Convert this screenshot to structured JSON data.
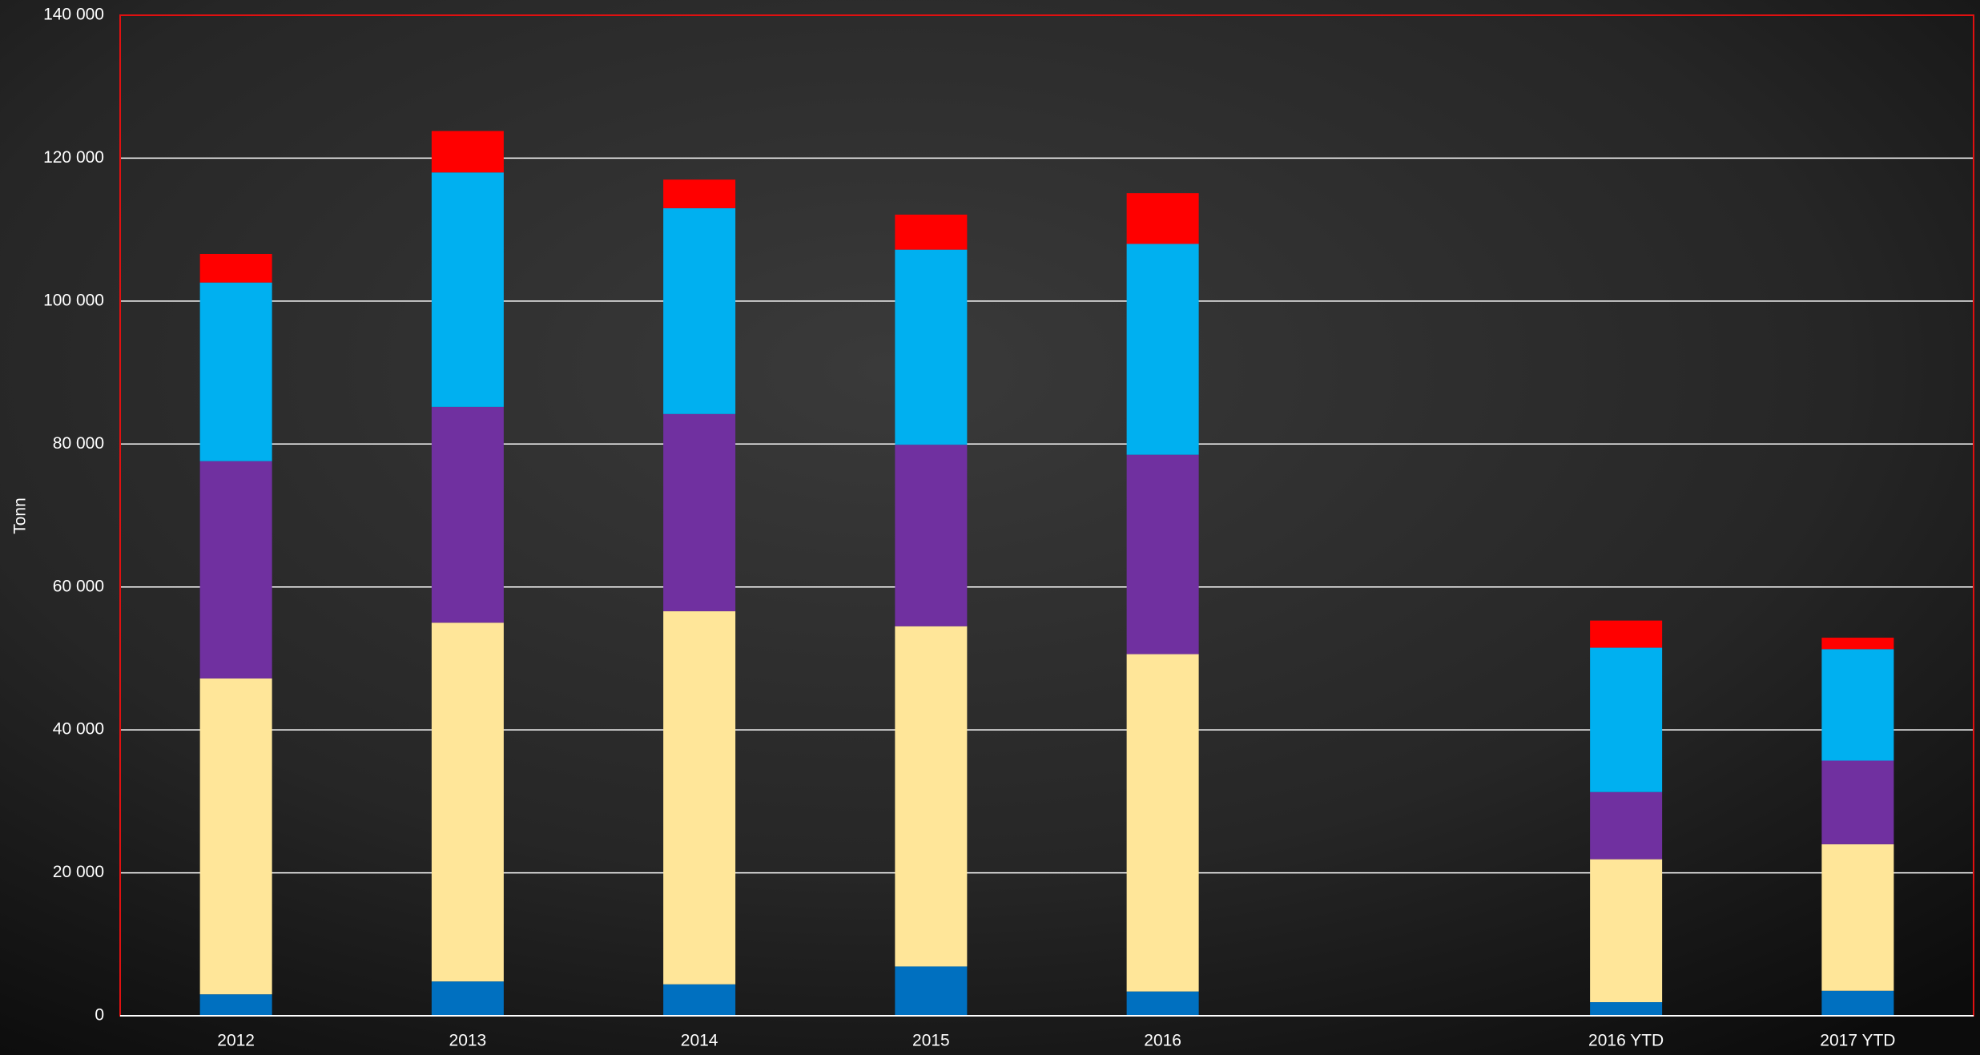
{
  "chart_data": {
    "type": "stacked-bar",
    "y_label": "Tonn",
    "categories": [
      "2012",
      "2013",
      "2014",
      "2015",
      "2016",
      null,
      "2016 YTD",
      "2017 YTD"
    ],
    "series": [
      {
        "color": "#0070c0",
        "values": [
          3000,
          4800,
          4400,
          6900,
          3400,
          null,
          1900,
          3500
        ]
      },
      {
        "color": "#ffe699",
        "values": [
          44200,
          50200,
          52200,
          47600,
          47200,
          null,
          20000,
          20500
        ]
      },
      {
        "color": "#7030a0",
        "values": [
          30400,
          30200,
          27600,
          25400,
          27900,
          null,
          9400,
          11700
        ]
      },
      {
        "color": "#00b0f0",
        "values": [
          25000,
          32800,
          28800,
          27300,
          29500,
          null,
          20200,
          15600
        ]
      },
      {
        "color": "#ff0000",
        "values": [
          4000,
          5800,
          4000,
          4900,
          7100,
          null,
          3800,
          1600
        ]
      }
    ],
    "ylim": [
      0,
      140000
    ],
    "yticks": [
      0,
      {
        "value": 20000,
        "label": "20 000"
      },
      {
        "value": 40000,
        "label": "40 000"
      },
      {
        "value": 60000,
        "label": "60 000"
      },
      {
        "value": 80000,
        "label": "80 000"
      },
      {
        "value": 100000,
        "label": "100 000"
      },
      {
        "value": 120000,
        "label": "120 000"
      },
      {
        "value": 140000,
        "label": "140 000"
      }
    ],
    "grid": true
  }
}
